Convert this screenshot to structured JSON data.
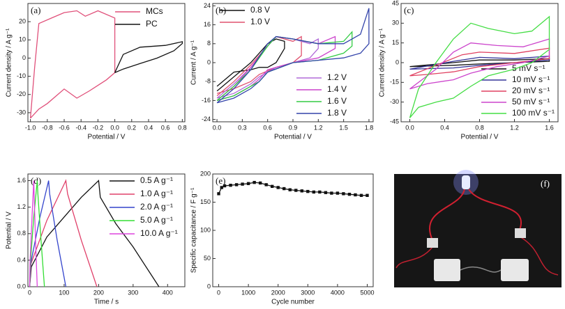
{
  "chart_data": [
    {
      "type": "line",
      "label": "(a)",
      "xlabel": "Potential / V",
      "ylabel": "Current density / A g⁻¹",
      "xlim": [
        -1.03,
        0.83
      ],
      "ylim": [
        -35,
        30
      ],
      "xticks": [
        {
          "value": -1,
          "label": "-1.0"
        },
        -0.8,
        -0.6,
        -0.4,
        -0.2,
        {
          "value": 0,
          "label": "0.0"
        },
        0.2,
        0.4,
        0.6,
        0.8
      ],
      "yticks": [
        -30,
        -20,
        -10,
        0,
        10,
        20
      ],
      "legend": "upper right",
      "series": [
        {
          "name": "MCs",
          "color": "#e0507a",
          "x": [
            -1.0,
            -0.95,
            -0.9,
            -0.75,
            -0.6,
            -0.45,
            -0.35,
            -0.2,
            0.0,
            0.0,
            -0.1,
            -0.3,
            -0.45,
            -0.6,
            -0.8,
            -0.9,
            -1.0
          ],
          "values": [
            -33,
            -5,
            19,
            22,
            25,
            26,
            23,
            26,
            22,
            -8,
            -12,
            -18,
            -22,
            -17,
            -25,
            -28,
            -33
          ]
        },
        {
          "name": "PC",
          "color": "#111111",
          "x": [
            0.0,
            0.1,
            0.3,
            0.6,
            0.8,
            0.8,
            0.7,
            0.5,
            0.3,
            0.1,
            0.0
          ],
          "values": [
            -8,
            2,
            6,
            7,
            9,
            8,
            4,
            0,
            -3,
            -6,
            -8
          ]
        }
      ]
    },
    {
      "type": "line",
      "label": "(b)",
      "xlabel": "Potential / V",
      "ylabel": "Current / A g⁻¹",
      "xlim": [
        -0.05,
        1.85
      ],
      "ylim": [
        -25,
        25
      ],
      "xticks": [
        {
          "value": 0,
          "label": "0.0"
        },
        0.3,
        0.6,
        0.9,
        1.2,
        1.5,
        1.8
      ],
      "yticks": [
        -24,
        -16,
        -8,
        0,
        8,
        16,
        24
      ],
      "legend": "upper left",
      "series": [
        {
          "name": "0.8 V",
          "color": "#111111",
          "x": [
            0,
            0.2,
            0.4,
            0.6,
            0.7,
            0.8,
            0.8,
            0.7,
            0.6,
            0.5,
            0.4,
            0.2,
            0
          ],
          "values": [
            -12,
            -6,
            0,
            8,
            10,
            9,
            6,
            0,
            -2,
            -2,
            -3,
            -4,
            -10
          ]
        },
        {
          "name": "1.0 V",
          "color": "#e0506e",
          "x": [
            0,
            0.2,
            0.4,
            0.6,
            0.7,
            0.9,
            1.0,
            1.0,
            0.9,
            0.7,
            0.5,
            0.4,
            0.2,
            0
          ],
          "values": [
            -14,
            -8,
            -1,
            7,
            11,
            9,
            11,
            3,
            0,
            -2,
            -5,
            -8,
            -11,
            -13
          ]
        },
        {
          "name": "1.2 V",
          "color": "#b06ad8",
          "x": [
            0,
            0.2,
            0.4,
            0.6,
            0.7,
            0.9,
            1.1,
            1.2,
            1.2,
            1.1,
            0.9,
            0.7,
            0.5,
            0.4,
            0.2,
            0
          ],
          "values": [
            -15,
            -9,
            -2,
            7,
            11,
            10,
            8,
            10,
            6,
            2,
            0,
            -2,
            -6,
            -9,
            -13,
            -15
          ]
        },
        {
          "name": "1.4 V",
          "color": "#cc44cc",
          "x": [
            0,
            0.2,
            0.4,
            0.6,
            0.7,
            0.9,
            1.2,
            1.4,
            1.4,
            1.2,
            0.9,
            0.6,
            0.5,
            0.4,
            0.2,
            0
          ],
          "values": [
            -16,
            -10,
            -2,
            7,
            11,
            10,
            8,
            11,
            6,
            2,
            0,
            -3,
            -7,
            -10,
            -14,
            -16
          ]
        },
        {
          "name": "1.6 V",
          "color": "#33cc44",
          "x": [
            0,
            0.2,
            0.4,
            0.6,
            0.7,
            0.9,
            1.2,
            1.5,
            1.6,
            1.6,
            1.5,
            1.2,
            0.9,
            0.6,
            0.5,
            0.4,
            0.2,
            0
          ],
          "values": [
            -16,
            -10,
            -3,
            7,
            11,
            10,
            8,
            9,
            13,
            7,
            4,
            1,
            0,
            -4,
            -8,
            -10,
            -14,
            -16
          ]
        },
        {
          "name": "1.8 V",
          "color": "#3344aa",
          "x": [
            0,
            0.2,
            0.4,
            0.6,
            0.7,
            0.9,
            1.2,
            1.5,
            1.7,
            1.8,
            1.8,
            1.7,
            1.5,
            1.2,
            0.9,
            0.6,
            0.5,
            0.4,
            0.2,
            0
          ],
          "values": [
            -17,
            -11,
            -3,
            8,
            11,
            10,
            8,
            8,
            12,
            23,
            8,
            4,
            2,
            1,
            0,
            -4,
            -8,
            -11,
            -15,
            -17
          ]
        }
      ]
    },
    {
      "type": "line",
      "label": "(c)",
      "xlabel": "Potential / V",
      "ylabel": "Current density / A g⁻¹",
      "xlim": [
        -0.1,
        1.7
      ],
      "ylim": [
        -45,
        45
      ],
      "xticks": [
        {
          "value": 0,
          "label": "0.0"
        },
        0.4,
        0.8,
        1.2,
        1.6
      ],
      "yticks": [
        -45,
        -30,
        -15,
        0,
        15,
        30,
        45
      ],
      "legend": "lower right",
      "series": [
        {
          "name": "5 mV s⁻¹",
          "color": "#111111",
          "x": [
            0,
            0.5,
            0.8,
            1.2,
            1.6,
            1.6,
            1.2,
            0.8,
            0.5,
            0
          ],
          "values": [
            -3,
            0,
            2,
            2,
            3,
            1,
            0,
            -1,
            -2,
            -3
          ]
        },
        {
          "name": "10 mV s⁻¹",
          "color": "#333399",
          "x": [
            0,
            0.5,
            0.8,
            1.2,
            1.6,
            1.6,
            1.2,
            0.8,
            0.5,
            0
          ],
          "values": [
            -5,
            1,
            4,
            3,
            5,
            2,
            0,
            -2,
            -4,
            -5
          ]
        },
        {
          "name": "20 mV s⁻¹",
          "color": "#e04060",
          "x": [
            0,
            0.3,
            0.6,
            0.8,
            1.2,
            1.6,
            1.6,
            1.2,
            0.8,
            0.5,
            0.2,
            0
          ],
          "values": [
            -10,
            -2,
            6,
            8,
            7,
            11,
            3,
            0,
            -3,
            -7,
            -9,
            -10
          ]
        },
        {
          "name": "50 mV s⁻¹",
          "color": "#cc44cc",
          "x": [
            0,
            0.3,
            0.5,
            0.7,
            1.0,
            1.3,
            1.6,
            1.6,
            1.3,
            1.0,
            0.7,
            0.5,
            0.2,
            0
          ],
          "values": [
            -20,
            -5,
            8,
            15,
            13,
            12,
            18,
            5,
            0,
            -3,
            -8,
            -13,
            -16,
            -20
          ]
        },
        {
          "name": "100 mV s⁻¹",
          "color": "#44dd44",
          "x": [
            0,
            0.1,
            0.3,
            0.5,
            0.7,
            0.9,
            1.2,
            1.4,
            1.6,
            1.6,
            1.4,
            1.2,
            0.9,
            0.7,
            0.5,
            0.3,
            0.1,
            0
          ],
          "values": [
            -42,
            -20,
            0,
            18,
            30,
            26,
            22,
            24,
            35,
            10,
            0,
            -5,
            -10,
            -18,
            -27,
            -30,
            -34,
            -42
          ]
        }
      ]
    },
    {
      "type": "line",
      "label": "(d)",
      "xlabel": "Time / s",
      "ylabel": "Potential / V",
      "xlim": [
        -5,
        450
      ],
      "ylim": [
        0,
        1.7
      ],
      "xticks": [
        0,
        100,
        200,
        300,
        400
      ],
      "yticks": [
        {
          "value": 0,
          "label": "0.0"
        },
        0.4,
        0.8,
        1.2,
        1.6
      ],
      "legend": "upper right",
      "series": [
        {
          "name": "0.5 A g⁻¹",
          "color": "#111111",
          "x": [
            0,
            5,
            50,
            100,
            150,
            200,
            205,
            250,
            300,
            350,
            375
          ],
          "values": [
            0,
            0.3,
            0.75,
            1.05,
            1.35,
            1.6,
            1.35,
            0.95,
            0.6,
            0.2,
            0
          ]
        },
        {
          "name": "1.0 A g⁻¹",
          "color": "#e0406a",
          "x": [
            0,
            4,
            50,
            105,
            110,
            150,
            195
          ],
          "values": [
            0,
            0.35,
            1.0,
            1.6,
            1.4,
            0.7,
            0
          ]
        },
        {
          "name": "2.0 A g⁻¹",
          "color": "#3344cc",
          "x": [
            0,
            3,
            30,
            55,
            58,
            80,
            105
          ],
          "values": [
            0,
            0.35,
            1.05,
            1.6,
            1.4,
            0.7,
            0
          ]
        },
        {
          "name": "5.0 A g⁻¹",
          "color": "#33dd33",
          "x": [
            0,
            2,
            12,
            22,
            24,
            33,
            43
          ],
          "values": [
            0,
            0.35,
            1.05,
            1.6,
            1.4,
            0.7,
            0
          ]
        },
        {
          "name": "10.0 A g⁻¹",
          "color": "#dd44dd",
          "x": [
            0,
            1,
            7,
            12,
            13,
            17,
            22
          ],
          "values": [
            0,
            0.35,
            1.05,
            1.6,
            1.4,
            0.7,
            0
          ]
        }
      ]
    },
    {
      "type": "scatter_line",
      "label": "(e)",
      "xlabel": "Cycle number",
      "ylabel": "Specific capacitance / F g⁻¹",
      "xlim": [
        -200,
        5200
      ],
      "ylim": [
        0,
        200
      ],
      "xticks": [
        0,
        1000,
        2000,
        3000,
        4000,
        5000
      ],
      "yticks": [
        0,
        50,
        100,
        150,
        200
      ],
      "marker": "square",
      "series": [
        {
          "color": "#111111",
          "x": [
            0,
            100,
            200,
            400,
            600,
            800,
            1000,
            1200,
            1400,
            1600,
            1800,
            2000,
            2200,
            2400,
            2600,
            2800,
            3000,
            3200,
            3400,
            3600,
            3800,
            4000,
            4200,
            4400,
            4600,
            4800,
            5000
          ],
          "values": [
            165,
            176,
            179,
            180,
            181,
            182,
            183,
            185,
            184,
            181,
            178,
            176,
            174,
            172,
            171,
            170,
            169,
            168,
            168,
            167,
            166,
            166,
            165,
            164,
            163,
            162,
            162
          ]
        }
      ]
    }
  ],
  "photo": {
    "label": "(f)"
  }
}
